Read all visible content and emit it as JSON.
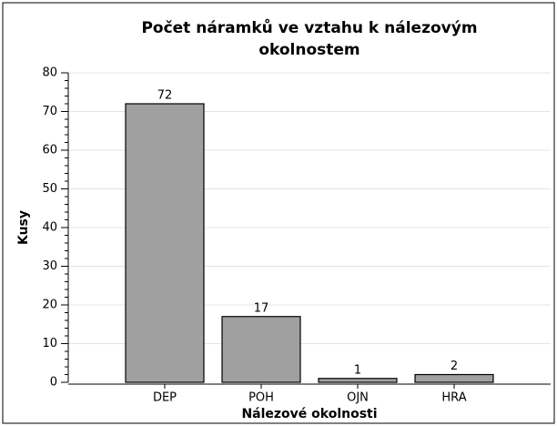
{
  "chart_data": {
    "type": "bar",
    "title": [
      "Počet náramků ve vztahu k nálezovým",
      "okolnostem"
    ],
    "x_label": "Nálezové okolnosti",
    "y_label": "Kusy",
    "categories": [
      "DEP",
      "POH",
      "OJN",
      "HRA"
    ],
    "values": [
      72,
      17,
      1,
      2
    ],
    "color": "#a0a0a0",
    "ylim": [
      0,
      80
    ],
    "yticks": [
      0,
      10,
      20,
      30,
      40,
      50,
      60,
      70,
      80
    ],
    "grid": true
  }
}
